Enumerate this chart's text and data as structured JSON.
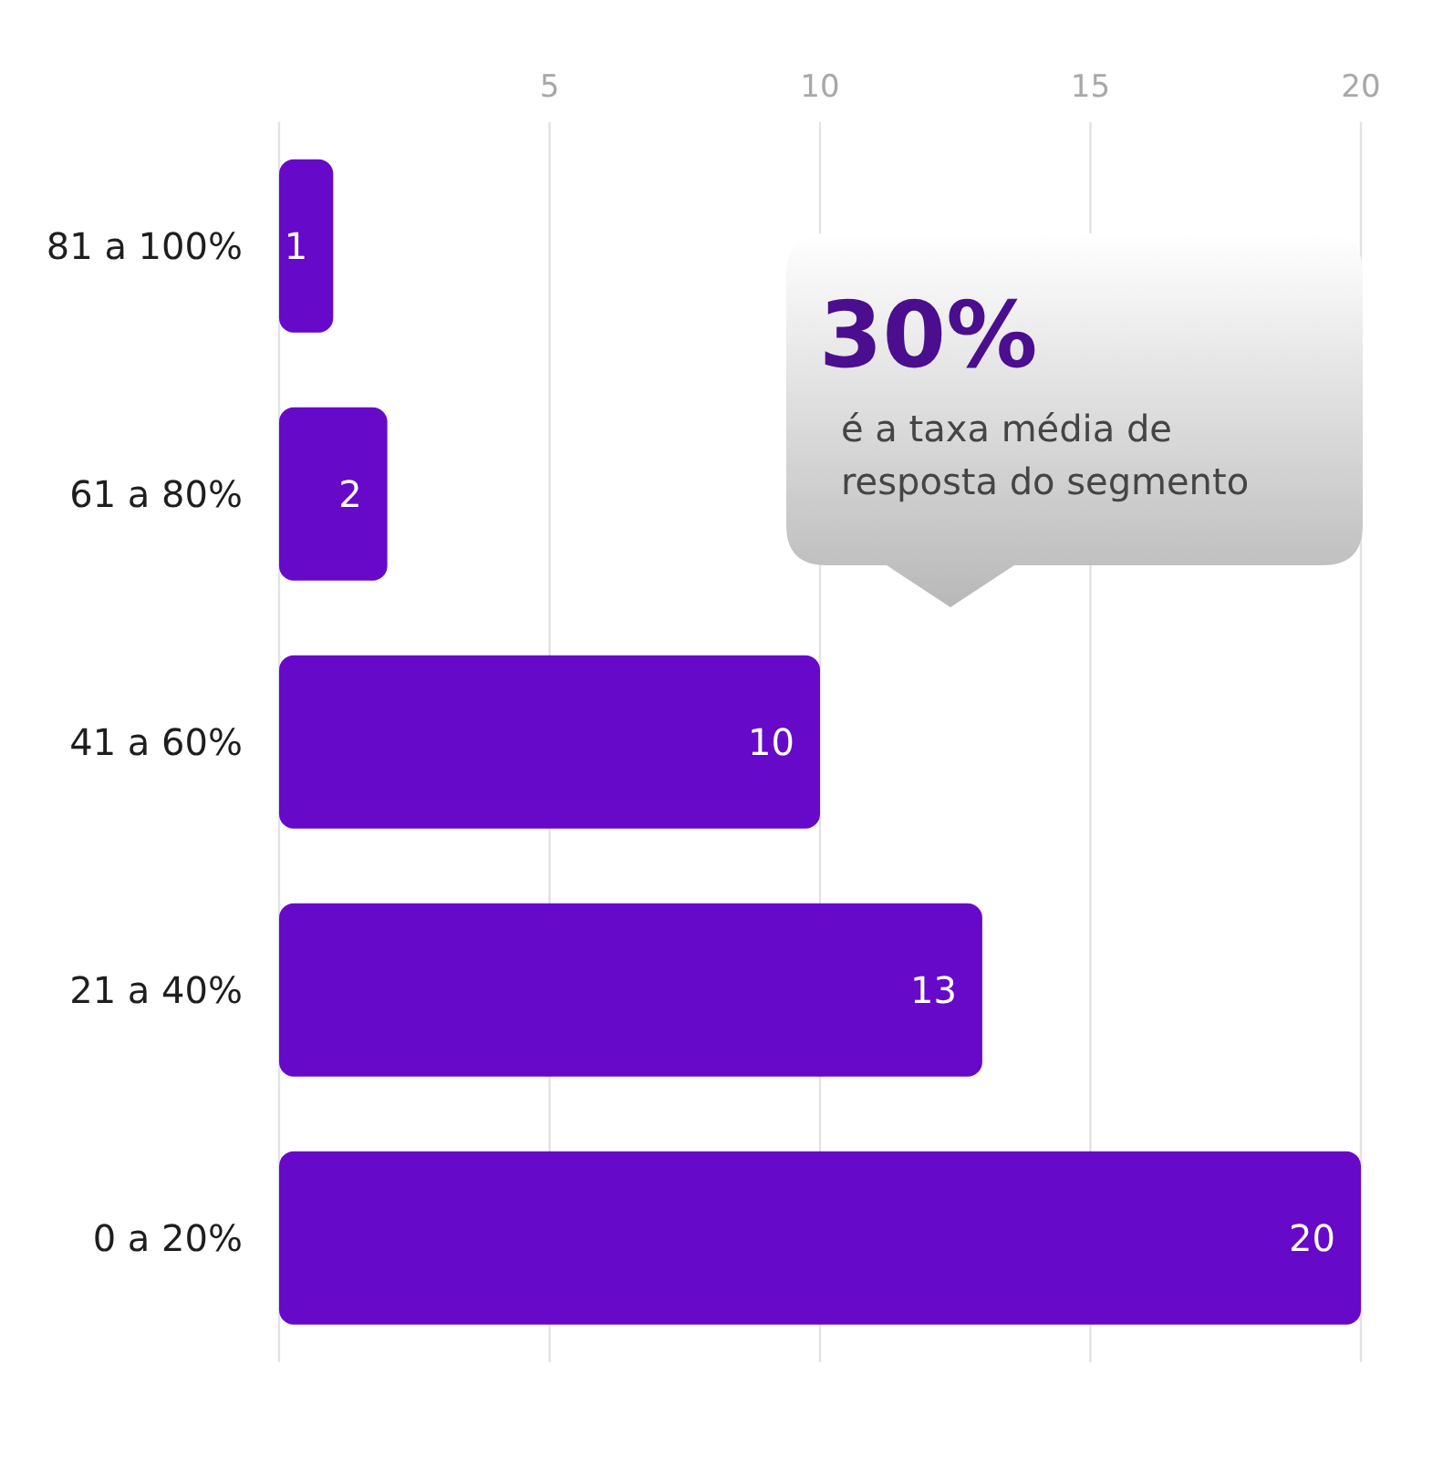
{
  "chart_data": {
    "type": "bar",
    "orientation": "horizontal",
    "categories": [
      "81 a 100%",
      "61 a 80%",
      "41 a 60%",
      "21 a 40%",
      "0 a 20%"
    ],
    "values": [
      1,
      2,
      10,
      13,
      20
    ],
    "color": "#6609c8",
    "xlim": [
      0,
      20
    ],
    "xticks": [
      5,
      10,
      15,
      20
    ],
    "grid": "x",
    "data_labels": true,
    "annotations": [
      "30%",
      "é a taxa média de resposta do segmento"
    ]
  }
}
